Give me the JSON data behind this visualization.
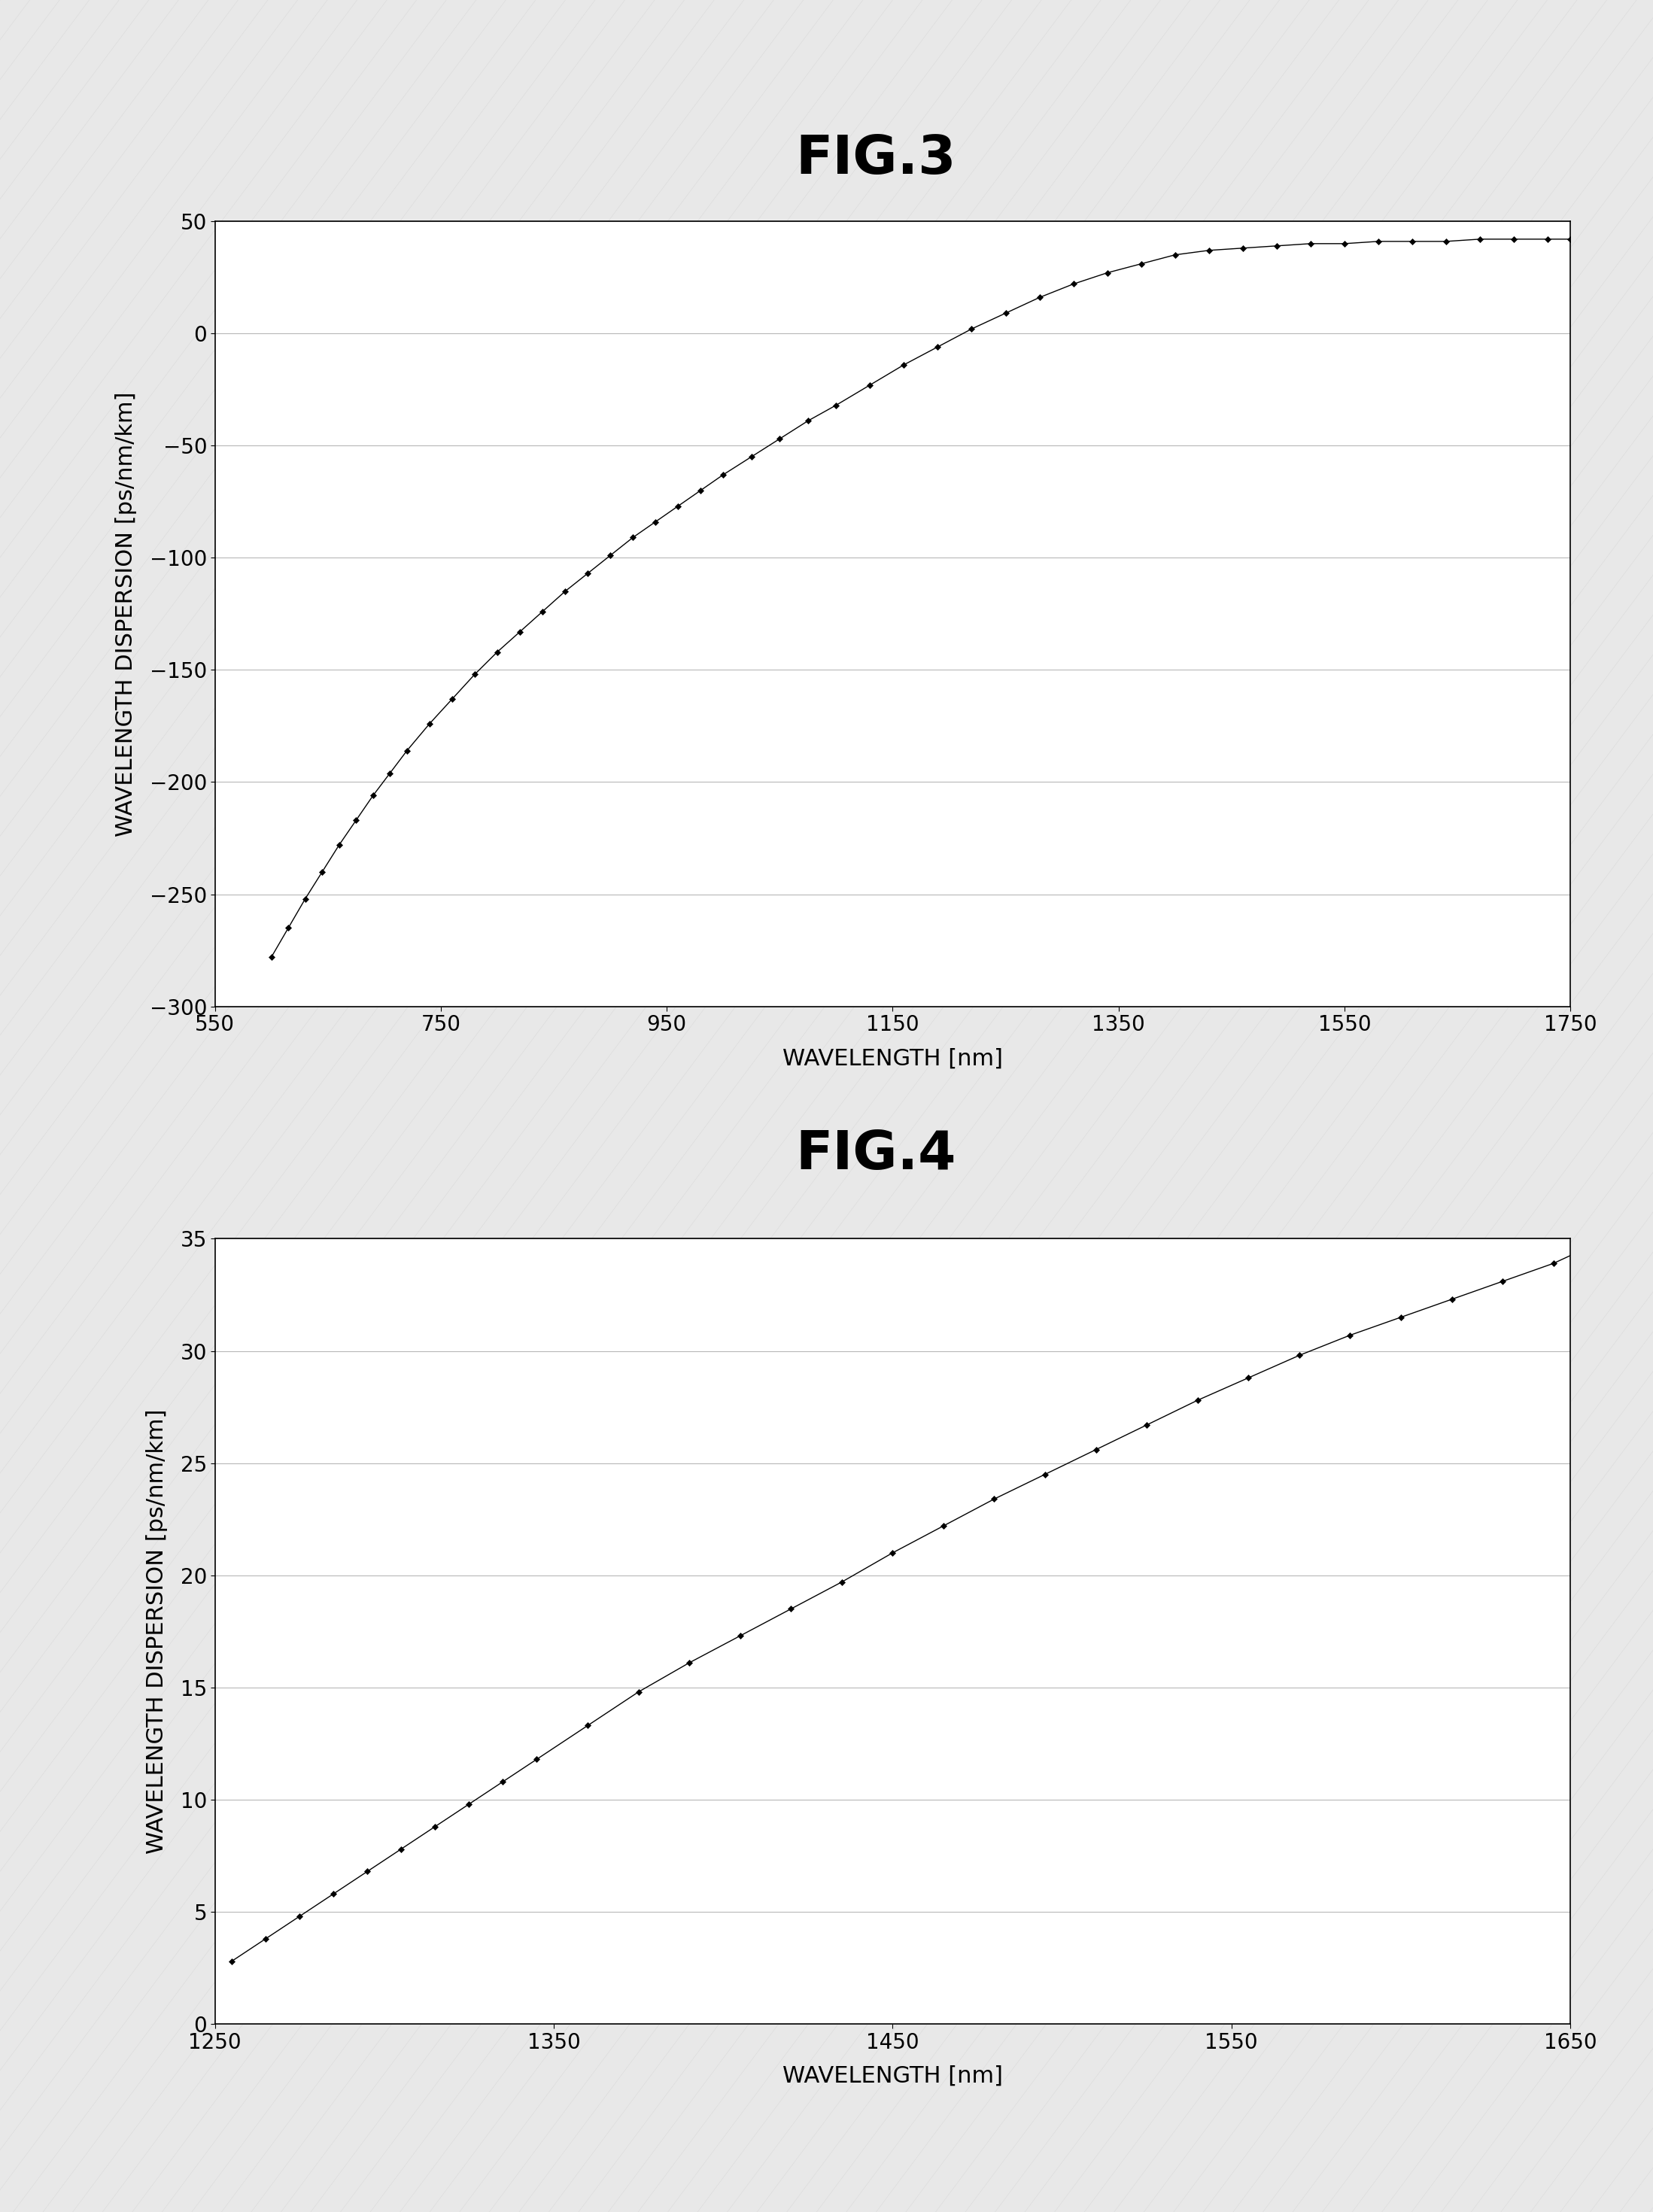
{
  "fig3_title": "FIG.3",
  "fig4_title": "FIG.4",
  "fig3_xlabel": "WAVELENGTH [nm]",
  "fig3_ylabel": "WAVELENGTH DISPERSION [ps/nm/km]",
  "fig4_xlabel": "WAVELENGTH [nm]",
  "fig4_ylabel": "WAVELENGTH DISPERSION [ps/nm/km]",
  "fig3_xlim": [
    550,
    1750
  ],
  "fig3_ylim": [
    -300,
    50
  ],
  "fig4_xlim": [
    1250,
    1650
  ],
  "fig4_ylim": [
    0,
    35
  ],
  "fig3_xticks": [
    550,
    750,
    950,
    1150,
    1350,
    1550,
    1750
  ],
  "fig3_yticks": [
    50,
    0,
    -50,
    -100,
    -150,
    -200,
    -250,
    -300
  ],
  "fig4_xticks": [
    1250,
    1350,
    1450,
    1550,
    1650
  ],
  "fig4_yticks": [
    0,
    5,
    10,
    15,
    20,
    25,
    30,
    35
  ],
  "fig3_x": [
    600,
    615,
    630,
    645,
    660,
    675,
    690,
    705,
    720,
    740,
    760,
    780,
    800,
    820,
    840,
    860,
    880,
    900,
    920,
    940,
    960,
    980,
    1000,
    1025,
    1050,
    1075,
    1100,
    1130,
    1160,
    1190,
    1220,
    1250,
    1280,
    1310,
    1340,
    1370,
    1400,
    1430,
    1460,
    1490,
    1520,
    1550,
    1580,
    1610,
    1640,
    1670,
    1700,
    1730,
    1750
  ],
  "fig3_y": [
    -278,
    -265,
    -252,
    -240,
    -228,
    -217,
    -206,
    -196,
    -186,
    -174,
    -163,
    -152,
    -142,
    -133,
    -124,
    -115,
    -107,
    -99,
    -91,
    -84,
    -77,
    -70,
    -63,
    -55,
    -47,
    -39,
    -32,
    -23,
    -14,
    -6,
    2,
    9,
    16,
    22,
    27,
    31,
    35,
    37,
    38,
    39,
    40,
    40,
    41,
    41,
    41,
    42,
    42,
    42,
    42
  ],
  "fig4_x": [
    1255,
    1265,
    1275,
    1285,
    1295,
    1305,
    1315,
    1325,
    1335,
    1345,
    1360,
    1375,
    1390,
    1405,
    1420,
    1435,
    1450,
    1465,
    1480,
    1495,
    1510,
    1525,
    1540,
    1555,
    1570,
    1585,
    1600,
    1615,
    1630,
    1645,
    1655
  ],
  "fig4_y": [
    2.8,
    3.8,
    4.8,
    5.8,
    6.8,
    7.8,
    8.8,
    9.8,
    10.8,
    11.8,
    13.3,
    14.8,
    16.1,
    17.3,
    18.5,
    19.7,
    21.0,
    22.2,
    23.4,
    24.5,
    25.6,
    26.7,
    27.8,
    28.8,
    29.8,
    30.7,
    31.5,
    32.3,
    33.1,
    33.9,
    34.6
  ],
  "line_color": "#000000",
  "marker": "D",
  "marker_size": 4,
  "marker_facecolor": "#000000",
  "page_bg": "#e8e8e8",
  "plot_bg": "#ffffff",
  "grid_color": "#888888",
  "title_fontsize": 52,
  "label_fontsize": 22,
  "tick_fontsize": 20
}
